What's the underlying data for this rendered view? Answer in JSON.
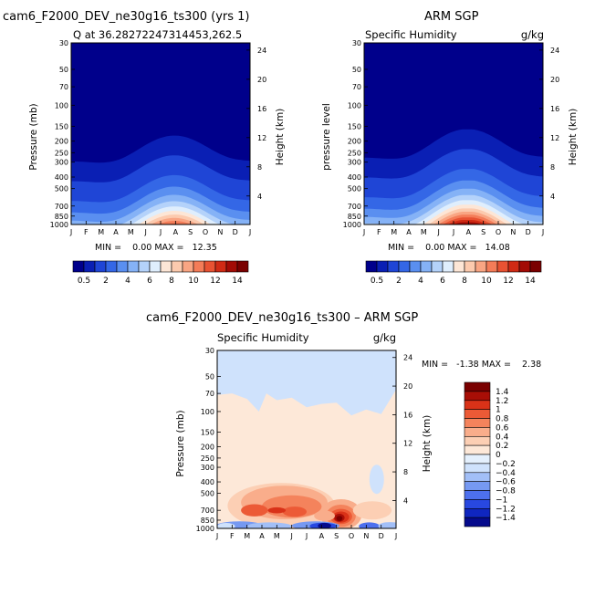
{
  "figure": {
    "panel_top_left": {
      "title": "cam6_F2000_DEV_ne30g16_ts300 (yrs 1)",
      "subtitle": "Q at 36.28272247314453,262.5",
      "ylabel": "Pressure (mb)",
      "ylabel_right": "Height (km)",
      "stats": "MIN =    0.00 MAX =   12.35"
    },
    "panel_top_right": {
      "title": "ARM SGP",
      "subtitle_left": "Specific Humidity",
      "subtitle_right": "g/kg",
      "ylabel": "pressure level",
      "ylabel_right": "Height (km)",
      "stats": "MIN =    0.00 MAX =   14.08"
    },
    "panel_bottom": {
      "title": "cam6_F2000_DEV_ne30g16_ts300 – ARM SGP",
      "subtitle_left": "Specific Humidity",
      "subtitle_right": "g/kg",
      "ylabel": "Pressure (mb)",
      "ylabel_right": "Height (km)",
      "stats": "MIN =   -1.38 MAX =    2.38"
    }
  },
  "colors": {
    "abs_scale": [
      "#00008b",
      "#0a1fb4",
      "#1f45d6",
      "#3467e6",
      "#5a8ff0",
      "#85b2f6",
      "#b4d2fa",
      "#dfeefd",
      "#fde6d6",
      "#fccaae",
      "#f9a583",
      "#f47c58",
      "#e85232",
      "#d02a14",
      "#a30b05",
      "#7a0000"
    ],
    "diff_scale": [
      "#050a8c",
      "#0f26c0",
      "#2848e0",
      "#4d70ee",
      "#7699f2",
      "#a2bff7",
      "#cfe2fc",
      "#e4f0fd",
      "#fde8d8",
      "#fccfb4",
      "#f9ad8b",
      "#f4835c",
      "#ec5a36",
      "#d93218",
      "#a80e06",
      "#7a0000"
    ]
  },
  "chart_data": [
    {
      "type": "heatmap",
      "title": "cam6_F2000_DEV_ne30g16_ts300 (yrs 1)",
      "subtitle": "Q at 36.28272247314453,262.5",
      "x": [
        "J",
        "F",
        "M",
        "A",
        "M",
        "J",
        "J",
        "A",
        "S",
        "O",
        "N",
        "D",
        "J"
      ],
      "y_ticks": [
        "30",
        "50",
        "70",
        "100",
        "150",
        "200",
        "250",
        "300",
        "400",
        "500",
        "700",
        "850",
        "1000"
      ],
      "y_ticks_right": [
        "24",
        "20",
        "16",
        "12",
        "8",
        "4"
      ],
      "ylabel": "Pressure (mb)",
      "ylabel_right": "Height (km)",
      "min": 0.0,
      "max": 12.35,
      "colorbar_ticks": [
        "0.5",
        "2",
        "4",
        "6",
        "8",
        "10",
        "12",
        "14"
      ],
      "max_month": 7,
      "near_surface_max": 12.35
    },
    {
      "type": "heatmap",
      "title": "ARM SGP",
      "subtitle": "Specific Humidity",
      "units": "g/kg",
      "x": [
        "J",
        "F",
        "M",
        "A",
        "M",
        "J",
        "J",
        "A",
        "S",
        "O",
        "N",
        "D",
        "J"
      ],
      "y_ticks": [
        "30",
        "50",
        "70",
        "100",
        "150",
        "200",
        "250",
        "300",
        "400",
        "500",
        "700",
        "850",
        "1000"
      ],
      "y_ticks_right": [
        "24",
        "20",
        "16",
        "12",
        "8",
        "4"
      ],
      "ylabel": "pressure level",
      "ylabel_right": "Height (km)",
      "min": 0.0,
      "max": 14.08,
      "colorbar_ticks": [
        "0.5",
        "2",
        "4",
        "6",
        "8",
        "10",
        "12",
        "14"
      ],
      "max_month": 7,
      "near_surface_max": 14.08
    },
    {
      "type": "heatmap",
      "title": "cam6_F2000_DEV_ne30g16_ts300 – ARM SGP",
      "subtitle": "Specific Humidity",
      "units": "g/kg",
      "x": [
        "J",
        "F",
        "M",
        "A",
        "M",
        "J",
        "J",
        "A",
        "S",
        "O",
        "N",
        "D",
        "J"
      ],
      "y_ticks": [
        "30",
        "50",
        "70",
        "100",
        "150",
        "200",
        "250",
        "300",
        "400",
        "500",
        "700",
        "850",
        "1000"
      ],
      "y_ticks_right": [
        "24",
        "20",
        "16",
        "12",
        "8",
        "4"
      ],
      "ylabel": "Pressure (mb)",
      "ylabel_right": "Height (km)",
      "min": -1.38,
      "max": 2.38,
      "colorbar_ticks": [
        "1.4",
        "1.2",
        "1",
        "0.8",
        "0.6",
        "0.4",
        "0.2",
        "0",
        "−0.2",
        "−0.4",
        "−0.6",
        "−0.8",
        "−1",
        "−1.2",
        "−1.4"
      ],
      "features": [
        {
          "label": "positive",
          "month": 8.3,
          "pressure": 780,
          "value": 2.38
        },
        {
          "label": "negative",
          "month": 7.2,
          "pressure": 940,
          "value": -1.38
        }
      ]
    }
  ]
}
